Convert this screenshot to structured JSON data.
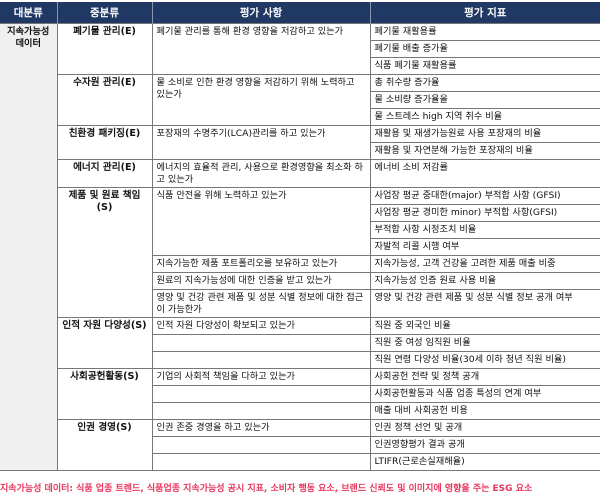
{
  "header": [
    "대분류",
    "중분류",
    "평가 사항",
    "평가 지표"
  ],
  "category": "지속가능성 데이터",
  "groups": [
    {
      "name": "폐기물 관리(E)",
      "items": [
        {
          "question": "폐기물 관리를 통해 환경 영향을 저감하고 있는가",
          "indicators": [
            "폐기물 재활용률",
            "폐기물 배출 증가율",
            "식품 폐기물 재활용률"
          ]
        }
      ]
    },
    {
      "name": "수자원 관리(E)",
      "items": [
        {
          "question": "물 소비로 인한 환경 영향을 저감하기 위해 노력하고 있는가",
          "indicators": [
            "총 취수량 증가율",
            "물 소비량 증가율을",
            "물 스트레스 high 지역 취수 비율"
          ]
        }
      ]
    },
    {
      "name": "친환경 패키징(E)",
      "items": [
        {
          "question": "포장재의 수명주기(LCA)관리를 하고 있는가",
          "indicators": [
            "재활용 및 재생가능원료 사용 포장재의 비율",
            "재활용 및 자연분해 가능한 포장재의 비율"
          ]
        }
      ]
    },
    {
      "name": "에너지 관리(E)",
      "items": [
        {
          "question": "에너지의 효율적 관리, 사용으로 환경영향을 최소화 하고 있는가",
          "indicators": [
            "에너비 소비 저감률"
          ],
          "tall": true
        }
      ]
    },
    {
      "name": "제품 및 원료 책임(S)",
      "items": [
        {
          "question": "식품 안전을 위해 노력하고 있는가",
          "indicators": [
            "사업장 평균 중대한(major) 부적합 사항 (GFSI)",
            "사업장 평균 경미한 minor) 부적합 사항(GFSI)",
            "부적합 사항 시정조치 비율",
            "자발적 리콜 시행 여부"
          ]
        },
        {
          "question": "지속가능한 제품 포트폴리오를 보유하고 있는가",
          "indicators": [
            "지속가능성, 고객 건강을 고려한 제품 매출 비중"
          ]
        },
        {
          "question": "원료의 지속가능성에 대한 인증을 받고 있는가",
          "indicators": [
            "지속가능성 인증 원료 사용 비율"
          ]
        },
        {
          "question": "영양 및 건강 관련 제품 및 성분 식별 정보에 대한 접근이 가능한가",
          "indicators": [
            "영양 및 건강 관련 제품 및 성분 식별 정보 공개 여부"
          ],
          "tall": true
        }
      ]
    },
    {
      "name": "인적 자원 다양성(S)",
      "items": [
        {
          "question": "인적 자원 다양성이 확보되고 있는가",
          "indicators": [
            "직원 중 외국인 비율"
          ]
        },
        {
          "question": "",
          "indicators": [
            "직원 중 여성 임직원 비율"
          ]
        },
        {
          "question": "",
          "indicators": [
            "직원 연령 다양성 비율(30세 이하 청년 직원 비율)"
          ]
        }
      ]
    },
    {
      "name": "사회공헌활동(S)",
      "items": [
        {
          "question": "기업의 사회적 책임을 다하고 있는가",
          "indicators": [
            "사회공헌 전략 및 정책 공개"
          ]
        },
        {
          "question": "",
          "indicators": [
            "사회공헌활동과 식품 업종 특성의 연계 여부"
          ]
        },
        {
          "question": "",
          "indicators": [
            "매출 대비 사회공헌 비용"
          ]
        }
      ]
    },
    {
      "name": "인권 경영(S)",
      "items": [
        {
          "question": "인권 존중 경영을 하고 있는가",
          "indicators": [
            "인권 정책 선언 및 공개"
          ]
        },
        {
          "question": "",
          "indicators": [
            "인권영향평가 결과 공개"
          ]
        },
        {
          "question": "",
          "indicators": [
            "LTIFR(근로손실재해율)"
          ]
        }
      ]
    }
  ],
  "footer": "지속가능성 데이터: 식품 업종 트렌드, 식품업종 지속가능성 공시 지표, 소비자 행동 요소, 브랜드 신뢰도 및 이미지에 영향을 주는 ESG 요소",
  "colors": {
    "header_bg": "#1f3864",
    "footer_text": "#e8365c",
    "category_bg": "#f0f0f0"
  }
}
